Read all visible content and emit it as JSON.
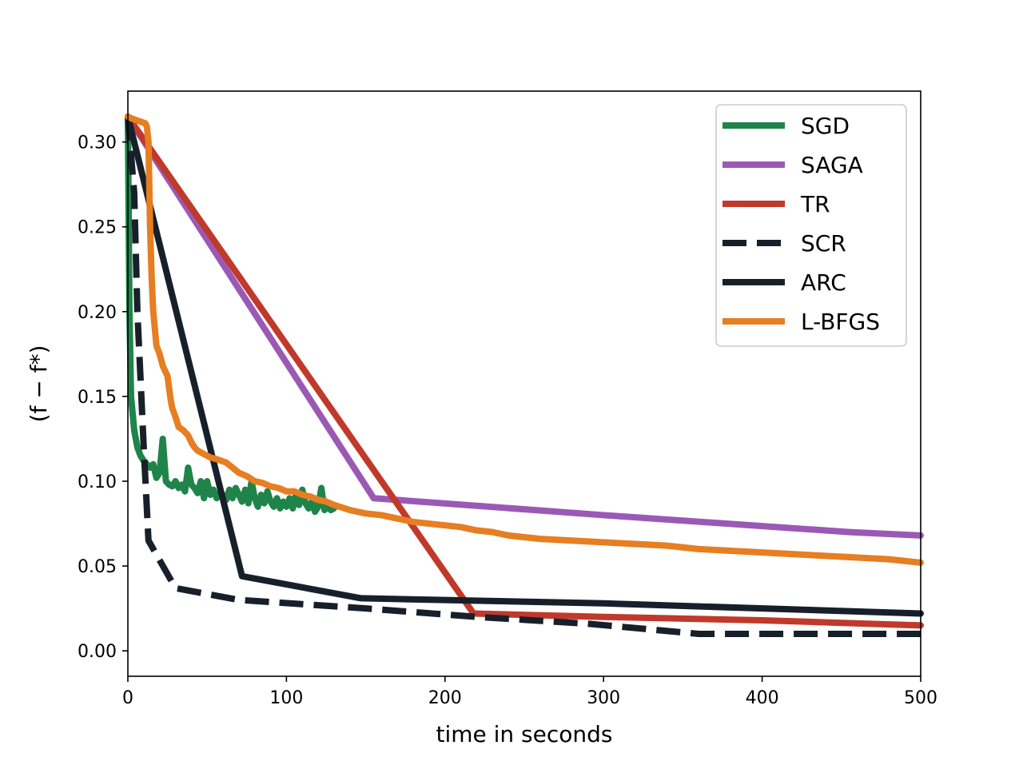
{
  "chart_data": {
    "type": "line",
    "title": "",
    "xlabel": "time in seconds",
    "ylabel": "(f − f*)",
    "xlim": [
      0,
      500
    ],
    "ylim": [
      -0.015,
      0.33
    ],
    "xticks": [
      0,
      100,
      200,
      300,
      400,
      500
    ],
    "yticks": [
      0.0,
      0.05,
      0.1,
      0.15,
      0.2,
      0.25,
      0.3
    ],
    "xtick_labels": [
      "0",
      "100",
      "200",
      "300",
      "400",
      "500"
    ],
    "ytick_labels": [
      "0.00",
      "0.05",
      "0.10",
      "0.15",
      "0.20",
      "0.25",
      "0.30"
    ],
    "grid": false,
    "legend_position": "top-right",
    "series": [
      {
        "name": "SGD",
        "color": "#1e8449",
        "dash": "solid",
        "points": [
          [
            0,
            0.315
          ],
          [
            1,
            0.2
          ],
          [
            2,
            0.15
          ],
          [
            4,
            0.13
          ],
          [
            6,
            0.12
          ],
          [
            8,
            0.115
          ],
          [
            10,
            0.112
          ],
          [
            12,
            0.11
          ],
          [
            14,
            0.108
          ],
          [
            16,
            0.11
          ],
          [
            18,
            0.102
          ],
          [
            20,
            0.105
          ],
          [
            22,
            0.125
          ],
          [
            24,
            0.1
          ],
          [
            26,
            0.098
          ],
          [
            28,
            0.097
          ],
          [
            30,
            0.1
          ],
          [
            32,
            0.096
          ],
          [
            34,
            0.098
          ],
          [
            36,
            0.094
          ],
          [
            38,
            0.108
          ],
          [
            40,
            0.098
          ],
          [
            42,
            0.096
          ],
          [
            44,
            0.093
          ],
          [
            46,
            0.1
          ],
          [
            48,
            0.09
          ],
          [
            50,
            0.1
          ],
          [
            52,
            0.092
          ],
          [
            54,
            0.095
          ],
          [
            56,
            0.09
          ],
          [
            58,
            0.093
          ],
          [
            60,
            0.092
          ],
          [
            62,
            0.089
          ],
          [
            64,
            0.095
          ],
          [
            66,
            0.09
          ],
          [
            68,
            0.096
          ],
          [
            70,
            0.092
          ],
          [
            72,
            0.088
          ],
          [
            74,
            0.095
          ],
          [
            76,
            0.087
          ],
          [
            78,
            0.1
          ],
          [
            80,
            0.09
          ],
          [
            82,
            0.085
          ],
          [
            84,
            0.092
          ],
          [
            86,
            0.087
          ],
          [
            88,
            0.094
          ],
          [
            90,
            0.088
          ],
          [
            92,
            0.085
          ],
          [
            94,
            0.09
          ],
          [
            96,
            0.084
          ],
          [
            98,
            0.088
          ],
          [
            100,
            0.085
          ],
          [
            102,
            0.09
          ],
          [
            104,
            0.084
          ],
          [
            106,
            0.092
          ],
          [
            108,
            0.086
          ],
          [
            110,
            0.095
          ],
          [
            112,
            0.087
          ],
          [
            114,
            0.084
          ],
          [
            116,
            0.088
          ],
          [
            118,
            0.082
          ],
          [
            120,
            0.085
          ],
          [
            122,
            0.096
          ],
          [
            124,
            0.083
          ],
          [
            126,
            0.085
          ],
          [
            128,
            0.083
          ],
          [
            130,
            0.084
          ]
        ]
      },
      {
        "name": "SAGA",
        "color": "#9b59b6",
        "dash": "solid",
        "points": [
          [
            0,
            0.315
          ],
          [
            155,
            0.09
          ],
          [
            300,
            0.08
          ],
          [
            455,
            0.07
          ],
          [
            500,
            0.068
          ]
        ]
      },
      {
        "name": "TR",
        "color": "#c0392b",
        "dash": "solid",
        "points": [
          [
            0,
            0.315
          ],
          [
            218,
            0.022
          ],
          [
            300,
            0.02
          ],
          [
            400,
            0.018
          ],
          [
            500,
            0.015
          ]
        ]
      },
      {
        "name": "SCR",
        "color": "#17202a",
        "dash": "dashed",
        "points": [
          [
            0,
            0.315
          ],
          [
            4,
            0.27
          ],
          [
            6,
            0.2
          ],
          [
            10,
            0.12
          ],
          [
            13,
            0.065
          ],
          [
            30,
            0.037
          ],
          [
            70,
            0.03
          ],
          [
            150,
            0.025
          ],
          [
            220,
            0.02
          ],
          [
            290,
            0.016
          ],
          [
            360,
            0.01
          ],
          [
            420,
            0.01
          ],
          [
            500,
            0.01
          ]
        ]
      },
      {
        "name": "ARC",
        "color": "#17202a",
        "dash": "solid",
        "points": [
          [
            0,
            0.315
          ],
          [
            72,
            0.044
          ],
          [
            147,
            0.031
          ],
          [
            300,
            0.028
          ],
          [
            500,
            0.022
          ]
        ]
      },
      {
        "name": "L-BFGS",
        "color": "#e67e22",
        "dash": "solid",
        "points": [
          [
            0,
            0.315
          ],
          [
            2,
            0.314
          ],
          [
            5,
            0.313
          ],
          [
            8,
            0.312
          ],
          [
            11,
            0.311
          ],
          [
            12,
            0.309
          ],
          [
            13,
            0.3
          ],
          [
            14,
            0.25
          ],
          [
            15,
            0.22
          ],
          [
            16,
            0.2
          ],
          [
            17,
            0.19
          ],
          [
            18,
            0.18
          ],
          [
            20,
            0.175
          ],
          [
            22,
            0.168
          ],
          [
            25,
            0.162
          ],
          [
            26,
            0.155
          ],
          [
            27,
            0.148
          ],
          [
            28,
            0.143
          ],
          [
            30,
            0.138
          ],
          [
            32,
            0.132
          ],
          [
            35,
            0.13
          ],
          [
            38,
            0.127
          ],
          [
            40,
            0.123
          ],
          [
            42,
            0.12
          ],
          [
            44,
            0.118
          ],
          [
            48,
            0.116
          ],
          [
            52,
            0.114
          ],
          [
            56,
            0.113
          ],
          [
            62,
            0.111
          ],
          [
            66,
            0.108
          ],
          [
            70,
            0.105
          ],
          [
            75,
            0.103
          ],
          [
            80,
            0.1
          ],
          [
            85,
            0.099
          ],
          [
            90,
            0.097
          ],
          [
            95,
            0.096
          ],
          [
            100,
            0.094
          ],
          [
            105,
            0.094
          ],
          [
            110,
            0.092
          ],
          [
            115,
            0.091
          ],
          [
            120,
            0.089
          ],
          [
            125,
            0.088
          ],
          [
            130,
            0.086
          ],
          [
            140,
            0.083
          ],
          [
            150,
            0.081
          ],
          [
            160,
            0.08
          ],
          [
            170,
            0.078
          ],
          [
            180,
            0.076
          ],
          [
            190,
            0.075
          ],
          [
            200,
            0.074
          ],
          [
            210,
            0.073
          ],
          [
            220,
            0.071
          ],
          [
            230,
            0.07
          ],
          [
            240,
            0.068
          ],
          [
            250,
            0.067
          ],
          [
            260,
            0.066
          ],
          [
            280,
            0.065
          ],
          [
            300,
            0.064
          ],
          [
            320,
            0.063
          ],
          [
            340,
            0.062
          ],
          [
            360,
            0.06
          ],
          [
            380,
            0.059
          ],
          [
            400,
            0.058
          ],
          [
            420,
            0.057
          ],
          [
            440,
            0.056
          ],
          [
            460,
            0.055
          ],
          [
            480,
            0.054
          ],
          [
            500,
            0.052
          ]
        ]
      }
    ]
  }
}
